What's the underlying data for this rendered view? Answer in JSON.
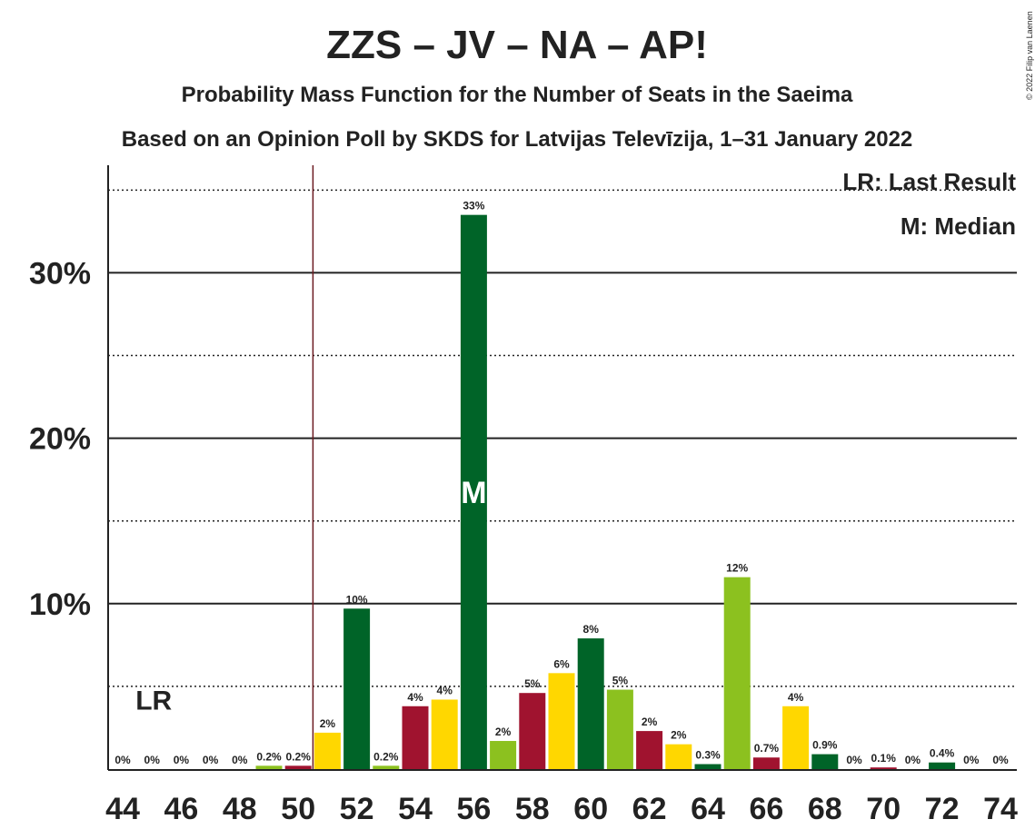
{
  "title": "ZZS – JV – NA – AP!",
  "subtitle1": "Probability Mass Function for the Number of Seats in the Saeima",
  "subtitle2": "Based on an Opinion Poll by SKDS for Latvijas Televīzija, 1–31 January 2022",
  "copyright": "© 2022 Filip van Laenen",
  "legend": {
    "lr": "LR: Last Result",
    "median": "M: Median"
  },
  "lr_marker": "LR",
  "median_marker": "M",
  "colors": {
    "red": "#A0132F",
    "yellow": "#FFD700",
    "green": "#006428",
    "lime": "#8CC11F",
    "lr_line": "#6B1A20"
  },
  "chart_data": {
    "type": "bar",
    "ylim": [
      0,
      36.5
    ],
    "yticks": [
      10,
      20,
      30
    ],
    "ytick_labels": [
      "10%",
      "20%",
      "30%"
    ],
    "grid": "solid major lines at 10/20/30, dotted at 5/15/25/35",
    "last_result": 51,
    "median": 56,
    "x_ticks": [
      44,
      46,
      48,
      50,
      52,
      54,
      56,
      58,
      60,
      62,
      64,
      66,
      68,
      70,
      72,
      74
    ],
    "x": [
      44,
      45,
      46,
      47,
      48,
      49,
      50,
      51,
      52,
      53,
      54,
      55,
      56,
      57,
      58,
      59,
      60,
      61,
      62,
      63,
      64,
      65,
      66,
      67,
      68,
      69,
      70,
      71,
      72,
      73,
      74
    ],
    "values": [
      0,
      0,
      0,
      0,
      0,
      0.2,
      0.2,
      2.2,
      9.7,
      0.2,
      3.8,
      4.2,
      33.5,
      1.7,
      4.6,
      5.8,
      7.9,
      4.8,
      2.3,
      1.5,
      0.3,
      11.6,
      0.7,
      3.8,
      0.9,
      0,
      0.1,
      0,
      0.4,
      0,
      0
    ],
    "labels": [
      "0%",
      "0%",
      "0%",
      "0%",
      "0%",
      "0.2%",
      "0.2%",
      "2%",
      "10%",
      "0.2%",
      "4%",
      "4%",
      "33%",
      "2%",
      "5%",
      "6%",
      "8%",
      "5%",
      "2%",
      "2%",
      "0.3%",
      "12%",
      "0.7%",
      "4%",
      "0.9%",
      "0%",
      "0.1%",
      "0%",
      "0.4%",
      "0%",
      "0%"
    ]
  }
}
